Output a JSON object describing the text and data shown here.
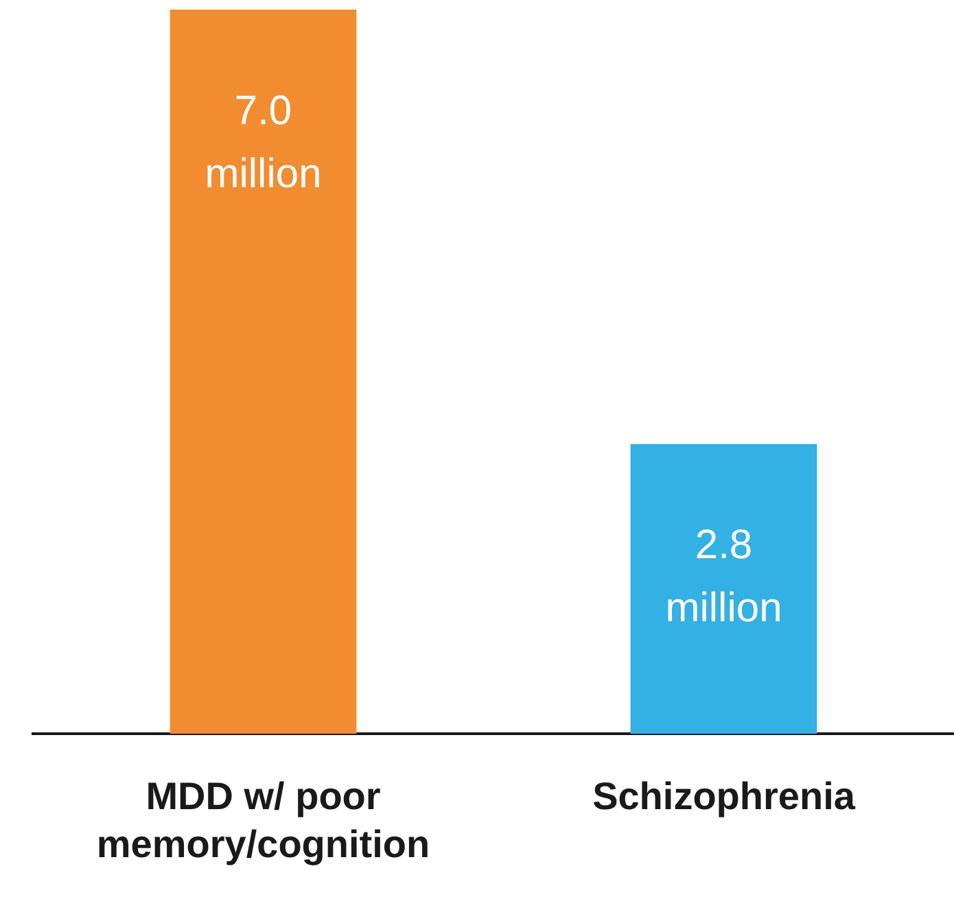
{
  "chart_data": {
    "type": "bar",
    "categories": [
      "MDD w/ poor memory/cognition",
      "Schizophrenia"
    ],
    "values": [
      7.0,
      2.8
    ],
    "colors": [
      "#f28c30",
      "#33b0e4"
    ],
    "value_labels": [
      "7.0 million",
      "2.8 million"
    ],
    "ylim": [
      0,
      7.0
    ],
    "tick_labels": "x",
    "grid": false,
    "legend": false
  }
}
